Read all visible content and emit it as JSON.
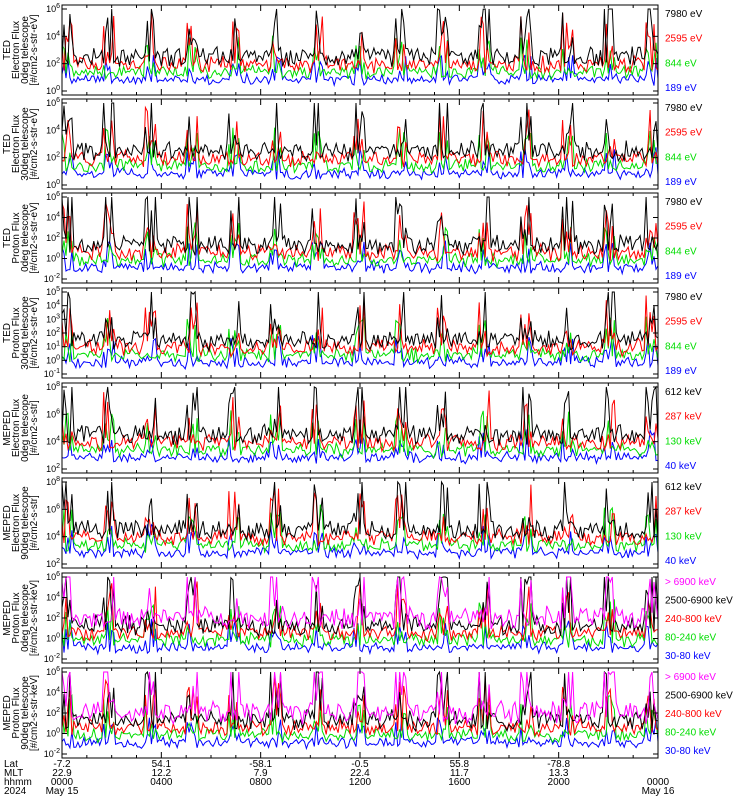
{
  "chart_data": [
    {
      "type": "line",
      "ylabel": [
        "TED",
        "Electron Flux",
        "0deg telescope",
        "[#/cm2-s-str-eV]"
      ],
      "yticks": [
        "10^6",
        "10^4",
        "10^2",
        "10^0"
      ],
      "series": [
        {
          "name": "7980 eV",
          "color": "#000000"
        },
        {
          "name": "2595 eV",
          "color": "#ff0000"
        },
        {
          "name": "844 eV",
          "color": "#00dd00"
        },
        {
          "name": "189 eV",
          "color": "#0000ff"
        }
      ]
    },
    {
      "type": "line",
      "ylabel": [
        "TED",
        "Electron Flux",
        "30deg telescope",
        "[#/cm2-s-str-eV]"
      ],
      "yticks": [
        "10^6",
        "10^4",
        "10^2",
        "10^0"
      ],
      "series": [
        {
          "name": "7980 eV",
          "color": "#000000"
        },
        {
          "name": "2595 eV",
          "color": "#ff0000"
        },
        {
          "name": "844 eV",
          "color": "#00dd00"
        },
        {
          "name": "189 eV",
          "color": "#0000ff"
        }
      ]
    },
    {
      "type": "line",
      "ylabel": [
        "TED",
        "Proton Flux",
        "0deg telescope",
        "[#/cm2-s-str-eV]"
      ],
      "yticks": [
        "10^6",
        "10^4",
        "10^2",
        "10^0",
        "10^-2"
      ],
      "series": [
        {
          "name": "7980 eV",
          "color": "#000000"
        },
        {
          "name": "2595 eV",
          "color": "#ff0000"
        },
        {
          "name": "844 eV",
          "color": "#00dd00"
        },
        {
          "name": "189 eV",
          "color": "#0000ff"
        }
      ]
    },
    {
      "type": "line",
      "ylabel": [
        "TED",
        "Proton Flux",
        "30deg telescope",
        "[#/cm2-s-str-eV]"
      ],
      "yticks": [
        "10^5",
        "10^4",
        "10^3",
        "10^2",
        "10^1",
        "10^0",
        "10^-1"
      ],
      "series": [
        {
          "name": "7980 eV",
          "color": "#000000"
        },
        {
          "name": "2595 eV",
          "color": "#ff0000"
        },
        {
          "name": "844 eV",
          "color": "#00dd00"
        },
        {
          "name": "189 eV",
          "color": "#0000ff"
        }
      ]
    },
    {
      "type": "line",
      "ylabel": [
        "MEPED",
        "Electron Flux",
        "0deg telescope",
        "[#/cm2-s-str]"
      ],
      "yticks": [
        "10^8",
        "10^6",
        "10^4",
        "10^2"
      ],
      "series": [
        {
          "name": "612 keV",
          "color": "#000000"
        },
        {
          "name": "287 keV",
          "color": "#ff0000"
        },
        {
          "name": "130 keV",
          "color": "#00dd00"
        },
        {
          "name": "40 keV",
          "color": "#0000ff"
        }
      ]
    },
    {
      "type": "line",
      "ylabel": [
        "MEPED",
        "Electron Flux",
        "90deg telescope",
        "[#/cm2-s-str]"
      ],
      "yticks": [
        "10^8",
        "10^6",
        "10^4",
        "10^2"
      ],
      "series": [
        {
          "name": "612 keV",
          "color": "#000000"
        },
        {
          "name": "287 keV",
          "color": "#ff0000"
        },
        {
          "name": "130 keV",
          "color": "#00dd00"
        },
        {
          "name": "40 keV",
          "color": "#0000ff"
        }
      ]
    },
    {
      "type": "line",
      "ylabel": [
        "MEPED",
        "Proton Flux",
        "0deg telescope",
        "[#/cm2-s-str-keV]"
      ],
      "yticks": [
        "10^6",
        "10^4",
        "10^2",
        "10^0",
        "10^-2"
      ],
      "series": [
        {
          "name": "> 6900 keV",
          "color": "#ff00ff"
        },
        {
          "name": "2500-6900 keV",
          "color": "#000000"
        },
        {
          "name": "240-800 keV",
          "color": "#ff0000"
        },
        {
          "name": "80-240 keV",
          "color": "#00dd00"
        },
        {
          "name": "30-80 keV",
          "color": "#0000ff"
        }
      ]
    },
    {
      "type": "line",
      "ylabel": [
        "MEPED",
        "Proton Flux",
        "90deg telescope",
        "[#/cm2-s-str-keV]"
      ],
      "yticks": [
        "10^6",
        "10^4",
        "10^2",
        "10^0",
        "10^-2"
      ],
      "series": [
        {
          "name": "> 6900 keV",
          "color": "#ff00ff"
        },
        {
          "name": "2500-6900 keV",
          "color": "#000000"
        },
        {
          "name": "240-800 keV",
          "color": "#ff0000"
        },
        {
          "name": "80-240 keV",
          "color": "#00dd00"
        },
        {
          "name": "30-80 keV",
          "color": "#0000ff"
        }
      ]
    }
  ],
  "footer": {
    "row_labels": [
      "Lat",
      "MLT",
      "hhmm",
      "2024"
    ],
    "columns": [
      {
        "lat": "-7.2",
        "mlt": "22.9",
        "hhmm": "0000",
        "date": "May 15"
      },
      {
        "lat": "54.1",
        "mlt": "12.2",
        "hhmm": "0400",
        "date": ""
      },
      {
        "lat": "-58.1",
        "mlt": "7.9",
        "hhmm": "0800",
        "date": ""
      },
      {
        "lat": "-0.5",
        "mlt": "22.4",
        "hhmm": "1200",
        "date": ""
      },
      {
        "lat": "55.8",
        "mlt": "11.7",
        "hhmm": "1600",
        "date": ""
      },
      {
        "lat": "-78.8",
        "mlt": "13.3",
        "hhmm": "2000",
        "date": ""
      },
      {
        "lat": "",
        "mlt": "",
        "hhmm": "0000",
        "date": "May 16"
      }
    ]
  }
}
